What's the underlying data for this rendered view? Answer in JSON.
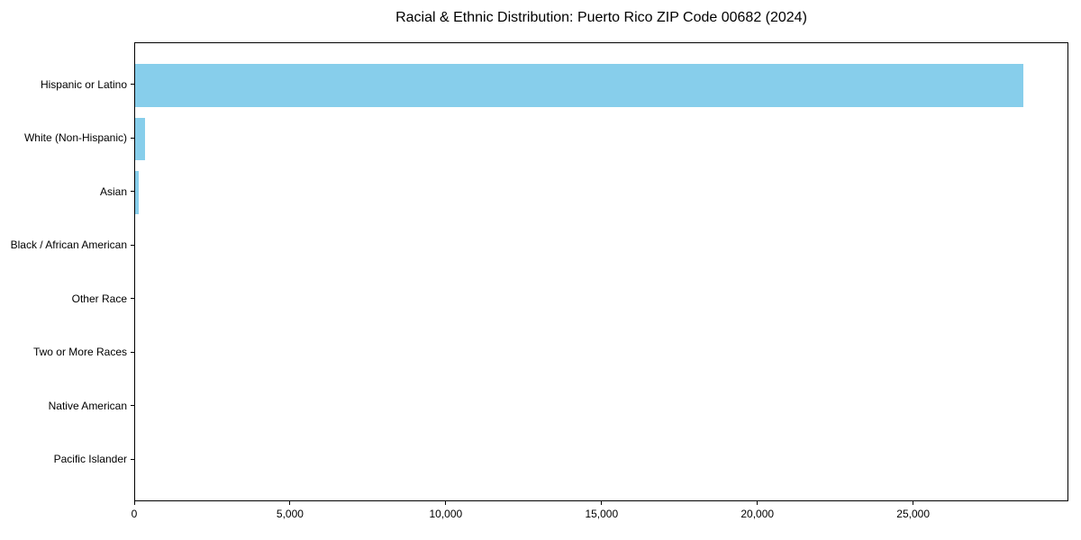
{
  "chart_data": {
    "type": "bar",
    "orientation": "horizontal",
    "title": "Racial & Ethnic Distribution: Puerto Rico ZIP Code 00682 (2024)",
    "categories": [
      "Hispanic or Latino",
      "White (Non-Hispanic)",
      "Asian",
      "Black / African American",
      "Other Race",
      "Two or More Races",
      "Native American",
      "Pacific Islander"
    ],
    "values": [
      28500,
      320,
      120,
      0,
      0,
      0,
      0,
      0
    ],
    "xlabel": "",
    "ylabel": "",
    "xlim": [
      0,
      29925
    ],
    "xticks": [
      0,
      5000,
      10000,
      15000,
      20000,
      25000
    ],
    "xtick_labels": [
      "0",
      "5,000",
      "10,000",
      "15,000",
      "20,000",
      "25,000"
    ],
    "bar_color": "#87CEEB",
    "background": "#FFFFFF",
    "grid": false,
    "legend": null
  }
}
